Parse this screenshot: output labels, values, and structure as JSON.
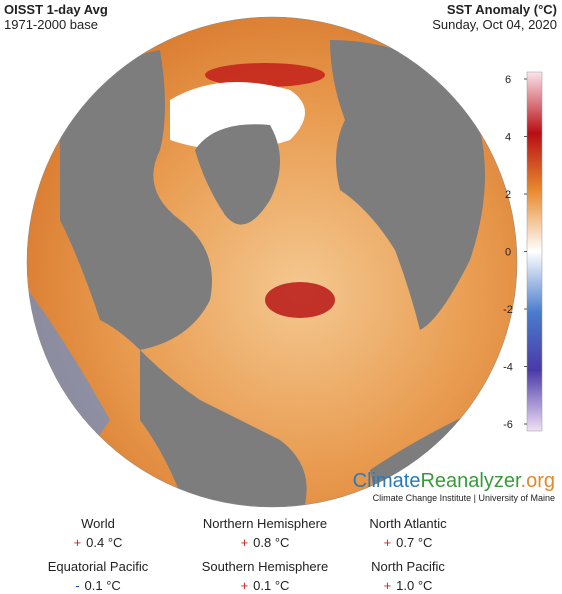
{
  "header": {
    "title": "OISST 1-day Avg",
    "subtitle": "1971-2000 base",
    "right_title": "SST Anomaly (°C)",
    "date": "Sunday, Oct 04, 2020"
  },
  "legend": {
    "range": [
      -6,
      6
    ],
    "ticks": [
      6,
      4,
      2,
      0,
      -2,
      -4,
      -6
    ]
  },
  "brand": {
    "parts": [
      "Climate",
      "Reanalyzer",
      ".org"
    ],
    "subtitle": "Climate Change Institute | University of Maine"
  },
  "stats": [
    {
      "name": "World",
      "sign": "+",
      "value": "0.4 °C"
    },
    {
      "name": "Northern Hemisphere",
      "sign": "+",
      "value": "0.8 °C"
    },
    {
      "name": "North Atlantic",
      "sign": "+",
      "value": "0.7 °C"
    },
    {
      "name": "Equatorial Pacific",
      "sign": "-",
      "value": "0.1 °C"
    },
    {
      "name": "Southern Hemisphere",
      "sign": "+",
      "value": "0.1 °C"
    },
    {
      "name": "North Pacific",
      "sign": "+",
      "value": "1.0 °C"
    }
  ]
}
